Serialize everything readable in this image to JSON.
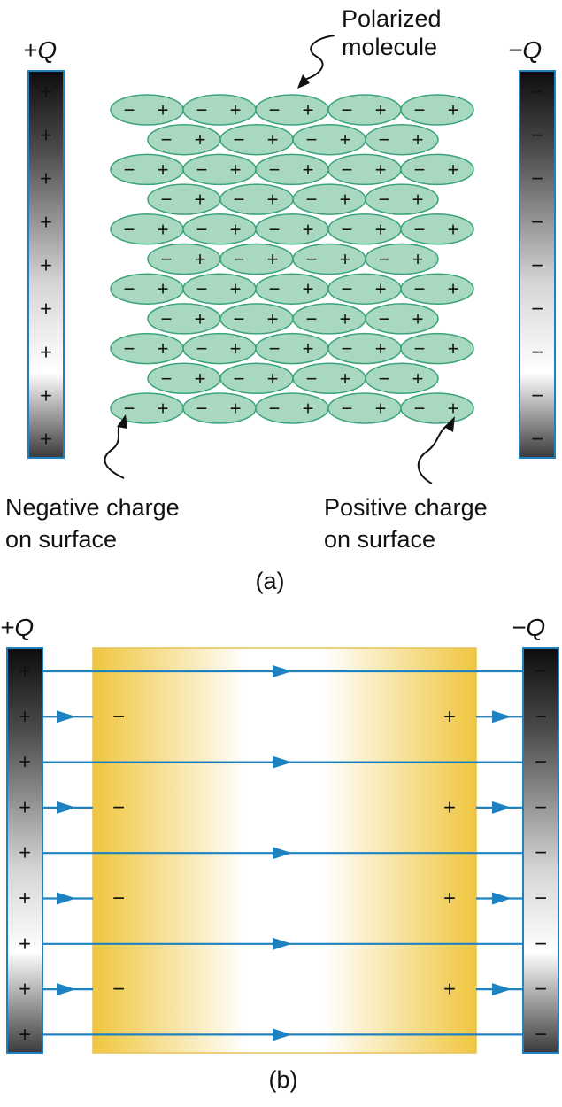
{
  "panel_a": {
    "charge_left": "+Q",
    "charge_right": "−Q",
    "plate_plus_symbol": "+",
    "plate_minus_symbol": "−",
    "molecule_negative_symbol": "−",
    "molecule_positive_symbol": "+",
    "label_polarized_line1": "Polarized",
    "label_polarized_line2": "molecule",
    "label_negative_line1": "Negative charge",
    "label_negative_line2": "on surface",
    "label_positive_line1": "Positive charge",
    "label_positive_line2": "on surface",
    "caption": "(a)",
    "plate_symbol_count": 9,
    "molecule_rows": 11,
    "molecules_per_long_row": 5,
    "molecules_per_short_row": 4
  },
  "panel_b": {
    "charge_left": "+Q",
    "charge_right": "−Q",
    "plate_plus_symbol": "+",
    "plate_minus_symbol": "−",
    "surface_negative_symbol": "−",
    "surface_positive_symbol": "+",
    "caption": "(b)",
    "plate_symbol_count": 9,
    "field_line_count": 9,
    "induced_charge_count": 4
  },
  "colors": {
    "molecule_fill": "#a8d8bf",
    "molecule_stroke": "#3aa37a",
    "field_line": "#1f82c0",
    "dielectric_gold": "#f1c94a",
    "plate_dark": "#111111",
    "plate_light": "#ffffff",
    "plate_border": "#1f82c0"
  }
}
